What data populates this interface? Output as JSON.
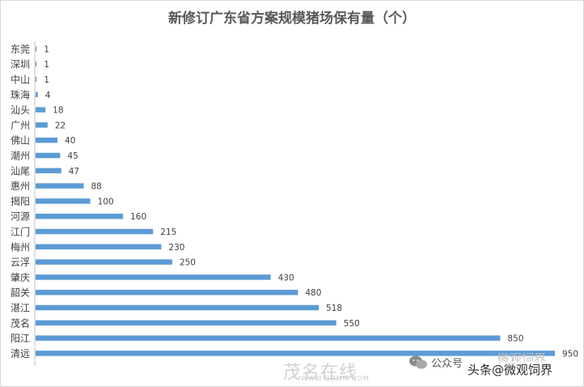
{
  "chart_data": {
    "type": "bar",
    "orientation": "horizontal",
    "title": "新修订广东省方案规模猪场保有量（个）",
    "categories": [
      "东莞",
      "深圳",
      "中山",
      "珠海",
      "汕头",
      "广州",
      "佛山",
      "潮州",
      "汕尾",
      "惠州",
      "揭阳",
      "河源",
      "江门",
      "梅州",
      "云浮",
      "肇庆",
      "韶关",
      "湛江",
      "茂名",
      "阳江",
      "清远"
    ],
    "values": [
      1,
      1,
      1,
      4,
      18,
      22,
      40,
      45,
      47,
      88,
      100,
      160,
      215,
      230,
      250,
      430,
      480,
      518,
      550,
      850,
      950
    ],
    "xlim": [
      0,
      950
    ],
    "grid": false,
    "legend": "none",
    "bar_color": "#5b9bd5"
  },
  "watermarks": {
    "site_name": "茂名在线",
    "site_url": "WWW.GDMM.COM",
    "wechat_label": "公众号",
    "platform": "头条",
    "account": "@微观饲界",
    "wechat_account": "微观饲界"
  }
}
